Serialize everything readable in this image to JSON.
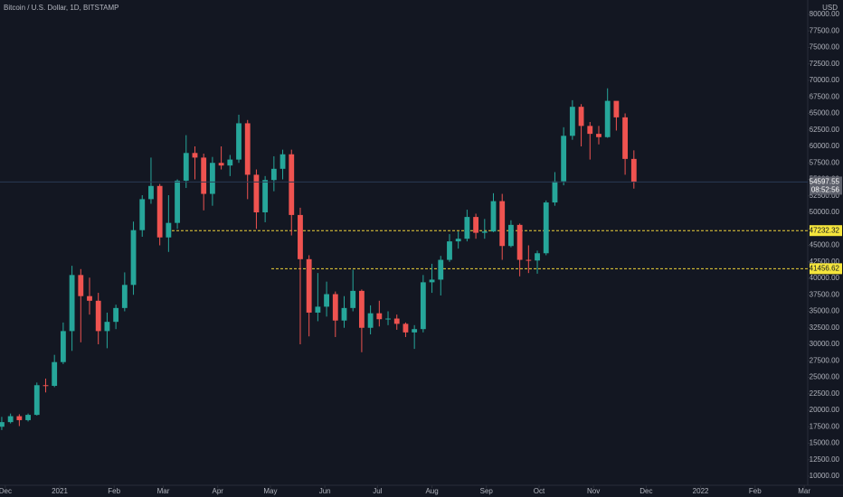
{
  "chart_data": {
    "type": "candlestick",
    "title": "Bitcoin / U.S. Dollar, 1D, BITSTAMP",
    "currency": "USD",
    "countdown": "08:52:56",
    "up_color": "#26a69a",
    "down_color": "#ef5350",
    "grid": false,
    "x": [
      -2,
      3,
      8,
      13,
      18,
      23,
      28,
      33,
      38,
      43,
      48,
      53,
      58,
      63,
      68,
      73,
      78,
      83,
      88,
      93,
      98,
      103,
      108,
      113,
      118,
      123,
      128,
      133,
      138,
      143,
      148,
      153,
      158,
      163,
      168,
      173,
      178,
      183,
      188,
      193,
      198,
      203,
      208,
      213,
      218,
      223,
      228,
      233,
      238,
      243,
      248,
      253,
      258,
      263,
      268,
      273,
      278,
      283,
      288,
      293,
      298,
      303,
      308,
      313,
      318,
      323,
      328,
      333,
      338,
      343,
      348,
      353,
      358
    ],
    "open": [
      17500,
      18200,
      19100,
      18500,
      19300,
      23800,
      23700,
      27300,
      32000,
      40500,
      37300,
      36600,
      32000,
      33400,
      35500,
      39000,
      47300,
      52000,
      54000,
      46200,
      48400,
      54800,
      59000,
      58300,
      52800,
      57500,
      57100,
      58000,
      63500,
      55700,
      50000,
      54900,
      56600,
      58800,
      49600,
      42900,
      34800,
      35700,
      37600,
      33600,
      35500,
      38100,
      32500,
      34700,
      33800,
      33900,
      33100,
      31800,
      32300,
      39400,
      39800,
      42800,
      45600,
      46000,
      49300,
      46900,
      47100,
      51700,
      44900,
      48100,
      42800,
      42700,
      43800,
      51500,
      54700,
      61600,
      66000,
      63100,
      61900,
      61400,
      66900,
      64400,
      58100
    ],
    "high": [
      19000,
      19500,
      19400,
      19500,
      24200,
      24800,
      28400,
      33300,
      41900,
      41400,
      40100,
      37800,
      34800,
      36000,
      40900,
      48600,
      52600,
      58300,
      54300,
      52600,
      55000,
      61700,
      60000,
      58900,
      58400,
      60000,
      58700,
      64800,
      64000,
      56500,
      55500,
      58500,
      59500,
      59500,
      50700,
      43500,
      40800,
      39500,
      38000,
      37300,
      41300,
      38300,
      35900,
      36600,
      35000,
      34500,
      33300,
      32900,
      40500,
      42200,
      43400,
      46700,
      47100,
      50400,
      49800,
      49000,
      52900,
      52800,
      48800,
      48300,
      45000,
      44200,
      51800,
      56100,
      62900,
      67000,
      66400,
      63700,
      63100,
      68800,
      66500,
      65000,
      59400
    ],
    "low": [
      17000,
      18000,
      17600,
      18300,
      19200,
      22700,
      23500,
      27000,
      29000,
      30300,
      34500,
      30000,
      29400,
      32300,
      35000,
      37500,
      46300,
      51300,
      45000,
      44000,
      47500,
      53700,
      55000,
      50300,
      51000,
      56500,
      55500,
      57500,
      52000,
      47500,
      48500,
      53200,
      55000,
      46500,
      30000,
      31200,
      33500,
      34200,
      31100,
      32500,
      35000,
      28800,
      31500,
      32700,
      32900,
      32200,
      31100,
      29300,
      31800,
      37800,
      37400,
      42500,
      44500,
      45600,
      46000,
      46000,
      47000,
      42800,
      44700,
      40300,
      40800,
      40700,
      43500,
      51000,
      54100,
      61000,
      60000,
      58000,
      60300,
      61300,
      62400,
      55700,
      53600
    ],
    "close": [
      18200,
      19100,
      18500,
      19300,
      23800,
      23700,
      27300,
      32000,
      40500,
      37300,
      36600,
      32000,
      33400,
      35500,
      39000,
      47300,
      52000,
      54000,
      46200,
      48400,
      54800,
      59000,
      58300,
      52800,
      57500,
      57100,
      58000,
      63500,
      55700,
      50000,
      54900,
      56600,
      58800,
      49600,
      42900,
      34800,
      35700,
      37600,
      33600,
      35500,
      38100,
      32500,
      34700,
      33800,
      33900,
      33100,
      31800,
      32300,
      39400,
      39800,
      42800,
      45600,
      46000,
      49300,
      46900,
      47100,
      51700,
      44900,
      48100,
      42800,
      42700,
      43800,
      51500,
      54700,
      61600,
      66000,
      63100,
      61900,
      61400,
      66900,
      64400,
      58100,
      54597.55
    ],
    "levels": [
      47232.32,
      41456.62
    ],
    "xlim": [
      -3,
      457
    ],
    "xticks": [
      {
        "value": 0,
        "label": "Dec"
      },
      {
        "value": 31,
        "label": "2021"
      },
      {
        "value": 62,
        "label": "Feb"
      },
      {
        "value": 90,
        "label": "Mar"
      },
      {
        "value": 121,
        "label": "Apr"
      },
      {
        "value": 151,
        "label": "May"
      },
      {
        "value": 182,
        "label": "Jun"
      },
      {
        "value": 212,
        "label": "Jul"
      },
      {
        "value": 243,
        "label": "Aug"
      },
      {
        "value": 274,
        "label": "Sep"
      },
      {
        "value": 304,
        "label": "Oct"
      },
      {
        "value": 335,
        "label": "Nov"
      },
      {
        "value": 365,
        "label": "Dec"
      },
      {
        "value": 396,
        "label": "2022"
      },
      {
        "value": 427,
        "label": "Feb"
      },
      {
        "value": 455,
        "label": "Mar"
      }
    ],
    "ylim": [
      8630,
      82190
    ],
    "yticks": [
      {
        "value": 10000,
        "label": "10000.00"
      },
      {
        "value": 12500,
        "label": "12500.00"
      },
      {
        "value": 15000,
        "label": "15000.00"
      },
      {
        "value": 17500,
        "label": "17500.00"
      },
      {
        "value": 20000,
        "label": "20000.00"
      },
      {
        "value": 22500,
        "label": "22500.00"
      },
      {
        "value": 25000,
        "label": "25000.00"
      },
      {
        "value": 27500,
        "label": "27500.00"
      },
      {
        "value": 30000,
        "label": "30000.00"
      },
      {
        "value": 32500,
        "label": "32500.00"
      },
      {
        "value": 35000,
        "label": "35000.00"
      },
      {
        "value": 37500,
        "label": "37500.00"
      },
      {
        "value": 40000,
        "label": "40000.00"
      },
      {
        "value": 42500,
        "label": "42500.00"
      },
      {
        "value": 45000,
        "label": "45000.00"
      },
      {
        "value": 47500,
        "label": "47500.00"
      },
      {
        "value": 50000,
        "label": "50000.00"
      },
      {
        "value": 52500,
        "label": "52500.00"
      },
      {
        "value": 55000,
        "label": "55000.00"
      },
      {
        "value": 57500,
        "label": "57500.00"
      },
      {
        "value": 60000,
        "label": "60000.00"
      },
      {
        "value": 62500,
        "label": "62500.00"
      },
      {
        "value": 65000,
        "label": "65000.00"
      },
      {
        "value": 67500,
        "label": "67500.00"
      },
      {
        "value": 70000,
        "label": "70000.00"
      },
      {
        "value": 72500,
        "label": "72500.00"
      },
      {
        "value": 75000,
        "label": "75000.00"
      },
      {
        "value": 77500,
        "label": "77500.00"
      },
      {
        "value": 80000,
        "label": "80000.00"
      }
    ]
  }
}
